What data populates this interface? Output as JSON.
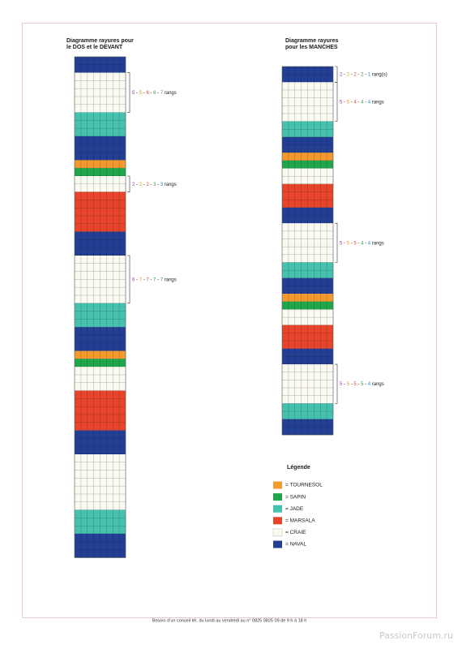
{
  "diagrams": [
    {
      "title": [
        "Diagramme rayures pour",
        "le DOS et le DEVANT"
      ],
      "stripes": [
        {
          "color": "#233f93",
          "rows": 2
        },
        {
          "color": "#fbfaf0",
          "rows": 5,
          "note": [
            "5",
            " - ",
            "5",
            " - ",
            "6",
            " - ",
            "6",
            " - ",
            "7",
            " rangs"
          ]
        },
        {
          "color": "#45c1ae",
          "rows": 3
        },
        {
          "color": "#233f93",
          "rows": 3
        },
        {
          "color": "#f3992e",
          "rows": 1
        },
        {
          "color": "#1fa64a",
          "rows": 1
        },
        {
          "color": "#fbfaf0",
          "rows": 2,
          "note": [
            "2",
            " - ",
            "2",
            " - ",
            "2",
            " - ",
            "3",
            " - ",
            "3",
            " rangs"
          ]
        },
        {
          "color": "#e6452b",
          "rows": 5
        },
        {
          "color": "#233f93",
          "rows": 3
        },
        {
          "color": "#fbfaf0",
          "rows": 6,
          "note": [
            "6",
            " - ",
            "7",
            " - ",
            "7",
            " - ",
            "7",
            " - ",
            "7",
            " rangs"
          ]
        },
        {
          "color": "#45c1ae",
          "rows": 3
        },
        {
          "color": "#233f93",
          "rows": 3
        },
        {
          "color": "#f3992e",
          "rows": 1
        },
        {
          "color": "#1fa64a",
          "rows": 1
        },
        {
          "color": "#fbfaf0",
          "rows": 3
        },
        {
          "color": "#e6452b",
          "rows": 5
        },
        {
          "color": "#233f93",
          "rows": 3
        },
        {
          "color": "#fbfaf0",
          "rows": 7
        },
        {
          "color": "#45c1ae",
          "rows": 3
        },
        {
          "color": "#233f93",
          "rows": 3
        }
      ]
    },
    {
      "title": [
        "Diagramme rayures",
        "pour les MANCHES"
      ],
      "stripes": [
        {
          "color": "#233f93",
          "rows": 2,
          "note": [
            "2",
            " - ",
            "2",
            " - ",
            "2",
            " - ",
            "2",
            " - ",
            "1",
            " rang(s)"
          ]
        },
        {
          "color": "#fbfaf0",
          "rows": 5,
          "note": [
            "5",
            " - ",
            "5",
            " - ",
            "4",
            " - ",
            "4",
            " - ",
            "4",
            " rangs"
          ]
        },
        {
          "color": "#45c1ae",
          "rows": 2
        },
        {
          "color": "#233f93",
          "rows": 2
        },
        {
          "color": "#f3992e",
          "rows": 1
        },
        {
          "color": "#1fa64a",
          "rows": 1
        },
        {
          "color": "#fbfaf0",
          "rows": 2
        },
        {
          "color": "#e6452b",
          "rows": 3
        },
        {
          "color": "#233f93",
          "rows": 2
        },
        {
          "color": "#fbfaf0",
          "rows": 5,
          "note": [
            "5",
            " - ",
            "5",
            " - ",
            "5",
            " - ",
            "4",
            " - ",
            "4",
            " rangs"
          ]
        },
        {
          "color": "#45c1ae",
          "rows": 2
        },
        {
          "color": "#233f93",
          "rows": 2
        },
        {
          "color": "#f3992e",
          "rows": 1
        },
        {
          "color": "#1fa64a",
          "rows": 1
        },
        {
          "color": "#fbfaf0",
          "rows": 2
        },
        {
          "color": "#e6452b",
          "rows": 3
        },
        {
          "color": "#233f93",
          "rows": 2
        },
        {
          "color": "#fbfaf0",
          "rows": 5,
          "note": [
            "5",
            " - ",
            "5",
            " - ",
            "5",
            " - ",
            "5",
            " - ",
            "4",
            " rangs"
          ]
        },
        {
          "color": "#45c1ae",
          "rows": 2
        },
        {
          "color": "#233f93",
          "rows": 2
        }
      ]
    }
  ],
  "size_colors": [
    "#9b3fa0",
    "#e8912a",
    "#e0462a",
    "#3a9a44",
    "#2a8fc7"
  ],
  "legend": {
    "title": "Légende",
    "items": [
      {
        "color": "#f3992e",
        "label": "= TOURNESOL"
      },
      {
        "color": "#1fa64a",
        "label": "= SAPIN"
      },
      {
        "color": "#45c1ae",
        "label": "= JADE"
      },
      {
        "color": "#e6452b",
        "label": "= MARSALA"
      },
      {
        "color": "#fbfaf0",
        "label": "= CRAIE"
      },
      {
        "color": "#233f93",
        "label": "= NAVAL"
      }
    ]
  },
  "footer": "Besoin d’un conseil tél. du lundi au vendredi au n° 0825 0825 09 de 9 h à 18 h",
  "watermark": "PassionForum.ru"
}
